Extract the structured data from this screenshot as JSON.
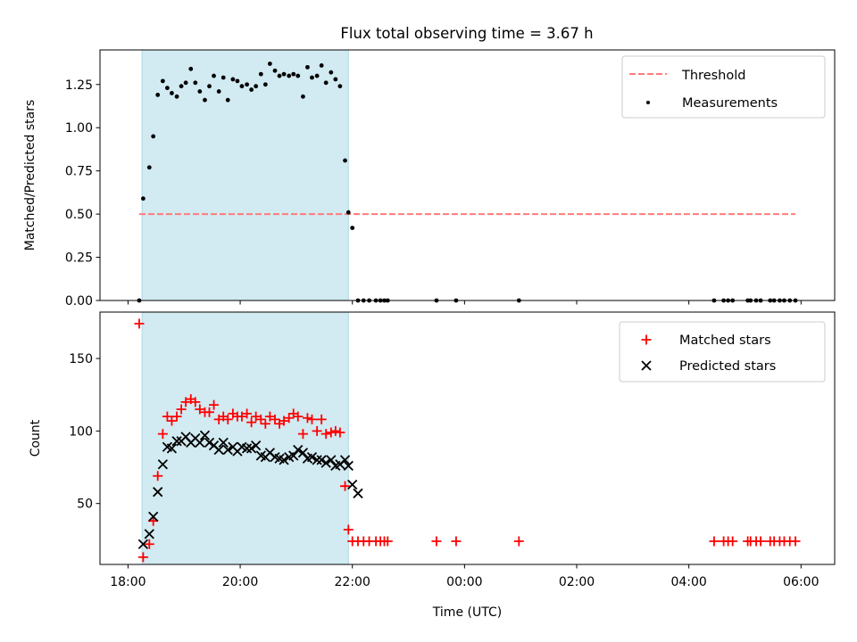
{
  "title": "Flux total observing time = 3.67 h",
  "colors": {
    "shade": "#add8e6",
    "threshold": "#ff7b7b",
    "measurement": "#000000",
    "matched": "#ff0000",
    "predicted": "#000000"
  },
  "chart_data": [
    {
      "type": "scatter",
      "id": "top",
      "ylabel": "Matched/Predicted stars",
      "xlim": [
        17.5,
        30.6
      ],
      "ylim": [
        0,
        1.45
      ],
      "yticks": [
        0,
        0.25,
        0.5,
        0.75,
        1.0,
        1.25
      ],
      "ytick_labels": [
        "0.00",
        "0.25",
        "0.50",
        "0.75",
        "1.00",
        "1.25"
      ],
      "shaded_x": [
        18.25,
        21.93
      ],
      "legend_position": "upper right",
      "threshold": {
        "name": "Threshold",
        "y": 0.5,
        "x": [
          18.2,
          29.9
        ]
      },
      "series": [
        {
          "name": "Measurements",
          "x": [
            18.2,
            18.27,
            18.38,
            18.45,
            18.53,
            18.62,
            18.7,
            18.78,
            18.87,
            18.95,
            19.03,
            19.12,
            19.2,
            19.28,
            19.37,
            19.45,
            19.53,
            19.62,
            19.7,
            19.78,
            19.87,
            19.95,
            20.03,
            20.12,
            20.2,
            20.28,
            20.37,
            20.45,
            20.53,
            20.62,
            20.7,
            20.78,
            20.87,
            20.95,
            21.03,
            21.12,
            21.2,
            21.28,
            21.37,
            21.45,
            21.53,
            21.62,
            21.7,
            21.78,
            21.87,
            21.93,
            22.0,
            22.1,
            22.2,
            22.3,
            22.42,
            22.5,
            22.57,
            22.63,
            23.5,
            23.85,
            24.97,
            28.45,
            28.62,
            28.7,
            28.78,
            29.05,
            29.1,
            29.2,
            29.28,
            29.45,
            29.52,
            29.62,
            29.7,
            29.8,
            29.9
          ],
          "y": [
            0.0,
            0.59,
            0.77,
            0.95,
            1.19,
            1.27,
            1.23,
            1.2,
            1.18,
            1.24,
            1.26,
            1.34,
            1.26,
            1.21,
            1.16,
            1.24,
            1.3,
            1.21,
            1.29,
            1.16,
            1.28,
            1.27,
            1.24,
            1.25,
            1.22,
            1.24,
            1.31,
            1.25,
            1.37,
            1.33,
            1.3,
            1.31,
            1.3,
            1.31,
            1.3,
            1.18,
            1.35,
            1.29,
            1.3,
            1.36,
            1.26,
            1.32,
            1.28,
            1.24,
            0.81,
            0.51,
            0.42,
            0.0,
            0.0,
            0.0,
            0.0,
            0.0,
            0.0,
            0.0,
            0.0,
            0.0,
            0.0,
            0.0,
            0.0,
            0.0,
            0.0,
            0.0,
            0.0,
            0.0,
            0.0,
            0.0,
            0.0,
            0.0,
            0.0,
            0.0,
            0.0
          ]
        }
      ]
    },
    {
      "type": "scatter",
      "id": "bottom",
      "ylabel": "Count",
      "xlabel": "Time (UTC)",
      "xlim": [
        17.5,
        30.6
      ],
      "ylim": [
        8,
        182
      ],
      "yticks": [
        50,
        100,
        150
      ],
      "ytick_labels": [
        "50",
        "100",
        "150"
      ],
      "xticks": [
        18,
        20,
        22,
        24,
        26,
        28,
        30
      ],
      "xtick_labels": [
        "18:00",
        "20:00",
        "22:00",
        "00:00",
        "02:00",
        "04:00",
        "06:00"
      ],
      "shaded_x": [
        18.25,
        21.93
      ],
      "legend_position": "upper right",
      "series": [
        {
          "name": "Matched stars",
          "marker": "plus",
          "x": [
            18.2,
            18.27,
            18.38,
            18.45,
            18.53,
            18.62,
            18.7,
            18.78,
            18.87,
            18.95,
            19.03,
            19.12,
            19.2,
            19.28,
            19.37,
            19.45,
            19.53,
            19.62,
            19.7,
            19.78,
            19.87,
            19.95,
            20.03,
            20.12,
            20.2,
            20.28,
            20.37,
            20.45,
            20.53,
            20.62,
            20.7,
            20.78,
            20.87,
            20.95,
            21.03,
            21.12,
            21.2,
            21.28,
            21.37,
            21.45,
            21.53,
            21.62,
            21.7,
            21.78,
            21.87,
            21.93,
            22.0,
            22.1,
            22.2,
            22.3,
            22.42,
            22.5,
            22.57,
            22.63,
            23.5,
            23.85,
            24.97,
            28.45,
            28.62,
            28.7,
            28.78,
            29.05,
            29.1,
            29.2,
            29.28,
            29.45,
            29.52,
            29.62,
            29.7,
            29.8,
            29.9
          ],
          "y": [
            174,
            13,
            22,
            38,
            69,
            98,
            110,
            107,
            110,
            115,
            120,
            122,
            120,
            115,
            113,
            113,
            118,
            108,
            110,
            108,
            112,
            110,
            110,
            112,
            106,
            110,
            108,
            105,
            110,
            108,
            105,
            107,
            109,
            112,
            110,
            98,
            109,
            108,
            100,
            108,
            98,
            99,
            100,
            99,
            62,
            32,
            24,
            24,
            24,
            24,
            24,
            24,
            24,
            24,
            24,
            24,
            24,
            24,
            24,
            24,
            24,
            24,
            24,
            24,
            24,
            24,
            24,
            24,
            24,
            24,
            24
          ]
        },
        {
          "name": "Predicted stars",
          "marker": "x",
          "x": [
            18.27,
            18.38,
            18.45,
            18.53,
            18.62,
            18.7,
            18.78,
            18.87,
            18.95,
            19.03,
            19.12,
            19.2,
            19.28,
            19.37,
            19.45,
            19.53,
            19.62,
            19.7,
            19.78,
            19.87,
            19.95,
            20.03,
            20.12,
            20.2,
            20.28,
            20.37,
            20.45,
            20.53,
            20.62,
            20.7,
            20.78,
            20.87,
            20.95,
            21.03,
            21.12,
            21.2,
            21.28,
            21.37,
            21.45,
            21.53,
            21.62,
            21.7,
            21.78,
            21.87,
            21.93,
            22.0,
            22.1
          ],
          "y": [
            22,
            29,
            41,
            58,
            77,
            89,
            88,
            93,
            93,
            96,
            92,
            95,
            92,
            97,
            92,
            90,
            87,
            92,
            87,
            89,
            86,
            89,
            88,
            88,
            90,
            83,
            82,
            85,
            82,
            81,
            80,
            82,
            83,
            87,
            85,
            81,
            82,
            80,
            80,
            78,
            80,
            76,
            77,
            80,
            76,
            63,
            57
          ]
        }
      ]
    }
  ]
}
